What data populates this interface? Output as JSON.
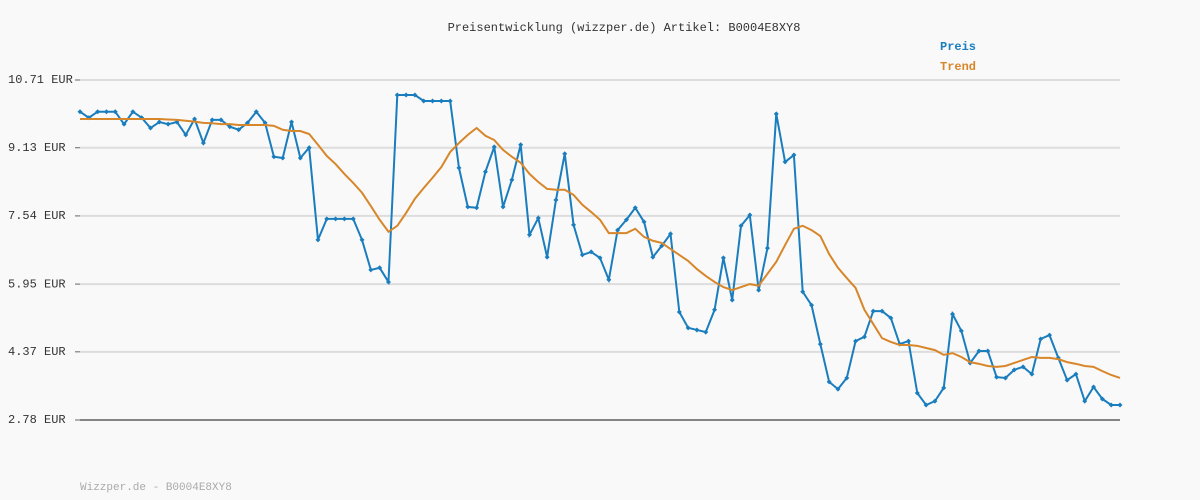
{
  "chart_data": {
    "type": "line",
    "title": "Preisentwicklung (wizzper.de) Artikel: B0004E8XY8",
    "footer": "Wizzper.de - B0004E8XY8",
    "legend": "top-right",
    "grid": true,
    "ylim": [
      2.78,
      10.71
    ],
    "yticks": [
      {
        "value": 2.78,
        "label": "2.78 EUR"
      },
      {
        "value": 4.37,
        "label": "4.37 EUR"
      },
      {
        "value": 5.95,
        "label": "5.95 EUR"
      },
      {
        "value": 7.54,
        "label": "7.54 EUR"
      },
      {
        "value": 9.13,
        "label": "9.13 EUR"
      },
      {
        "value": 10.71,
        "label": "10.71 EUR"
      }
    ],
    "categories": [
      null,
      null,
      null,
      null,
      null,
      null,
      null,
      null,
      null,
      null,
      null,
      null,
      null,
      null,
      null,
      null,
      null,
      null,
      null,
      null,
      null,
      null,
      null,
      null,
      null,
      null,
      null,
      null,
      null,
      null,
      null,
      null,
      null,
      null,
      null,
      null,
      null,
      null,
      null,
      null,
      null,
      null,
      null,
      null,
      null,
      null,
      null,
      null,
      null,
      null,
      null,
      null,
      null,
      null,
      null,
      null,
      null,
      null,
      null,
      null,
      null,
      null,
      null,
      null,
      null,
      null,
      null,
      null,
      null,
      null,
      null,
      null,
      null,
      null,
      null,
      null,
      null,
      null,
      null,
      null,
      null,
      null,
      null,
      null,
      null,
      null,
      null,
      null,
      null,
      null,
      null,
      null,
      null,
      null,
      null,
      null,
      null,
      null,
      null,
      null,
      null,
      null,
      null,
      null,
      null,
      null,
      null,
      null,
      null,
      null,
      null,
      null,
      null,
      null,
      null,
      null,
      null,
      null,
      null
    ],
    "series": [
      {
        "name": "Preis",
        "color": "#1a7dbd",
        "markers": true,
        "values": [
          9.97,
          9.83,
          9.97,
          9.97,
          9.97,
          9.68,
          9.97,
          9.83,
          9.59,
          9.73,
          9.68,
          9.73,
          9.43,
          9.8,
          9.24,
          9.78,
          9.78,
          9.62,
          9.55,
          9.71,
          9.97,
          9.71,
          8.92,
          8.89,
          9.73,
          8.89,
          9.13,
          6.98,
          7.47,
          7.47,
          7.47,
          7.47,
          6.98,
          6.28,
          6.33,
          6.0,
          10.36,
          10.36,
          10.36,
          10.22,
          10.22,
          10.22,
          10.22,
          8.66,
          7.75,
          7.73,
          8.57,
          9.15,
          7.75,
          8.38,
          9.2,
          7.1,
          7.49,
          6.58,
          7.91,
          8.99,
          7.33,
          6.63,
          6.7,
          6.56,
          6.05,
          7.21,
          7.45,
          7.73,
          7.4,
          6.58,
          6.84,
          7.12,
          5.3,
          4.93,
          4.88,
          4.83,
          5.35,
          6.56,
          5.58,
          7.31,
          7.56,
          5.81,
          6.79,
          9.92,
          8.8,
          8.96,
          5.77,
          5.46,
          4.55,
          3.67,
          3.5,
          3.76,
          4.62,
          4.72,
          5.32,
          5.32,
          5.16,
          4.55,
          4.62,
          3.41,
          3.13,
          3.22,
          3.53,
          5.25,
          4.86,
          4.11,
          4.39,
          4.39,
          3.78,
          3.76,
          3.95,
          4.02,
          3.85,
          4.67,
          4.76,
          4.23,
          3.71,
          3.85,
          3.22,
          3.55,
          3.27,
          3.13,
          3.13
        ]
      },
      {
        "name": "Trend",
        "color": "#d8862a",
        "markers": false,
        "values": [
          9.8,
          9.8,
          9.8,
          9.8,
          9.8,
          9.8,
          9.8,
          9.8,
          9.8,
          9.8,
          9.79,
          9.78,
          9.76,
          9.74,
          9.71,
          9.7,
          9.68,
          9.68,
          9.66,
          9.66,
          9.66,
          9.66,
          9.64,
          9.55,
          9.52,
          9.52,
          9.45,
          9.2,
          8.94,
          8.75,
          8.52,
          8.31,
          8.08,
          7.77,
          7.45,
          7.17,
          7.31,
          7.61,
          7.94,
          8.19,
          8.43,
          8.68,
          9.03,
          9.24,
          9.43,
          9.59,
          9.41,
          9.31,
          9.08,
          8.92,
          8.78,
          8.52,
          8.33,
          8.17,
          8.15,
          8.15,
          8.03,
          7.8,
          7.63,
          7.45,
          7.14,
          7.14,
          7.14,
          7.24,
          7.05,
          6.96,
          6.91,
          6.77,
          6.63,
          6.49,
          6.3,
          6.14,
          6.0,
          5.88,
          5.81,
          5.88,
          5.95,
          5.91,
          6.19,
          6.47,
          6.86,
          7.24,
          7.31,
          7.21,
          7.07,
          6.65,
          6.33,
          6.09,
          5.86,
          5.35,
          5.02,
          4.69,
          4.6,
          4.53,
          4.53,
          4.51,
          4.46,
          4.41,
          4.3,
          4.34,
          4.25,
          4.13,
          4.09,
          4.04,
          4.02,
          4.04,
          4.11,
          4.18,
          4.25,
          4.23,
          4.23,
          4.2,
          4.13,
          4.09,
          4.04,
          4.02,
          3.92,
          3.83,
          3.76
        ]
      }
    ]
  }
}
